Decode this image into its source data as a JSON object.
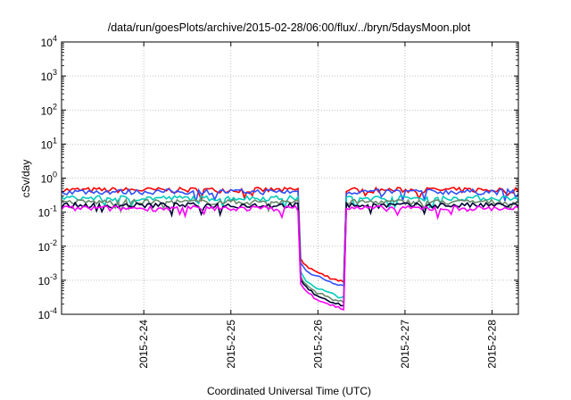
{
  "chart_data": {
    "type": "line",
    "title": "/data/run/goesPlots/archive/2015-02-28/06:00/flux/../bryn/5daysMoon.plot",
    "xlabel": "Coordinated Universal Time (UTC)",
    "ylabel": "cSv/day",
    "yscale": "log",
    "ylim": [
      0.0001,
      10000
    ],
    "xlim": [
      "2015-02-23T01:20",
      "2015-02-28T07:15"
    ],
    "x_ticks": [
      "2015-2-24",
      "2015-2-25",
      "2015-2-26",
      "2015-2-27",
      "2015-2-28"
    ],
    "y_ticks": [
      {
        "base": "10",
        "exp": "-4"
      },
      {
        "base": "10",
        "exp": "-3"
      },
      {
        "base": "10",
        "exp": "-2"
      },
      {
        "base": "10",
        "exp": "-1"
      },
      {
        "base": "10",
        "exp": "0"
      },
      {
        "base": "10",
        "exp": "1"
      },
      {
        "base": "10",
        "exp": "2"
      },
      {
        "base": "10",
        "exp": "3"
      },
      {
        "base": "10",
        "exp": "4"
      }
    ],
    "grid": true,
    "legend": "none",
    "anomaly": {
      "start": "2015-02-25T18:40",
      "end": "2015-02-26T07:15"
    },
    "series": [
      {
        "color": "#ff0000",
        "baseline": 0.45,
        "drop_start": 0.01,
        "drop_end": 0.0009
      },
      {
        "color": "#3050ff",
        "baseline": 0.4,
        "drop_start": 0.007,
        "drop_end": 0.0007
      },
      {
        "color": "#00ccbb",
        "baseline": 0.26,
        "drop_start": 0.004,
        "drop_end": 0.0003
      },
      {
        "color": "#6a8a6a",
        "baseline": 0.2,
        "drop_start": 0.003,
        "drop_end": 0.00022
      },
      {
        "color": "#000033",
        "baseline": 0.16,
        "drop_start": 0.0025,
        "drop_end": 0.00018
      },
      {
        "color": "#ff00ff",
        "baseline": 0.13,
        "drop_start": 0.002,
        "drop_end": 0.00014
      }
    ]
  }
}
